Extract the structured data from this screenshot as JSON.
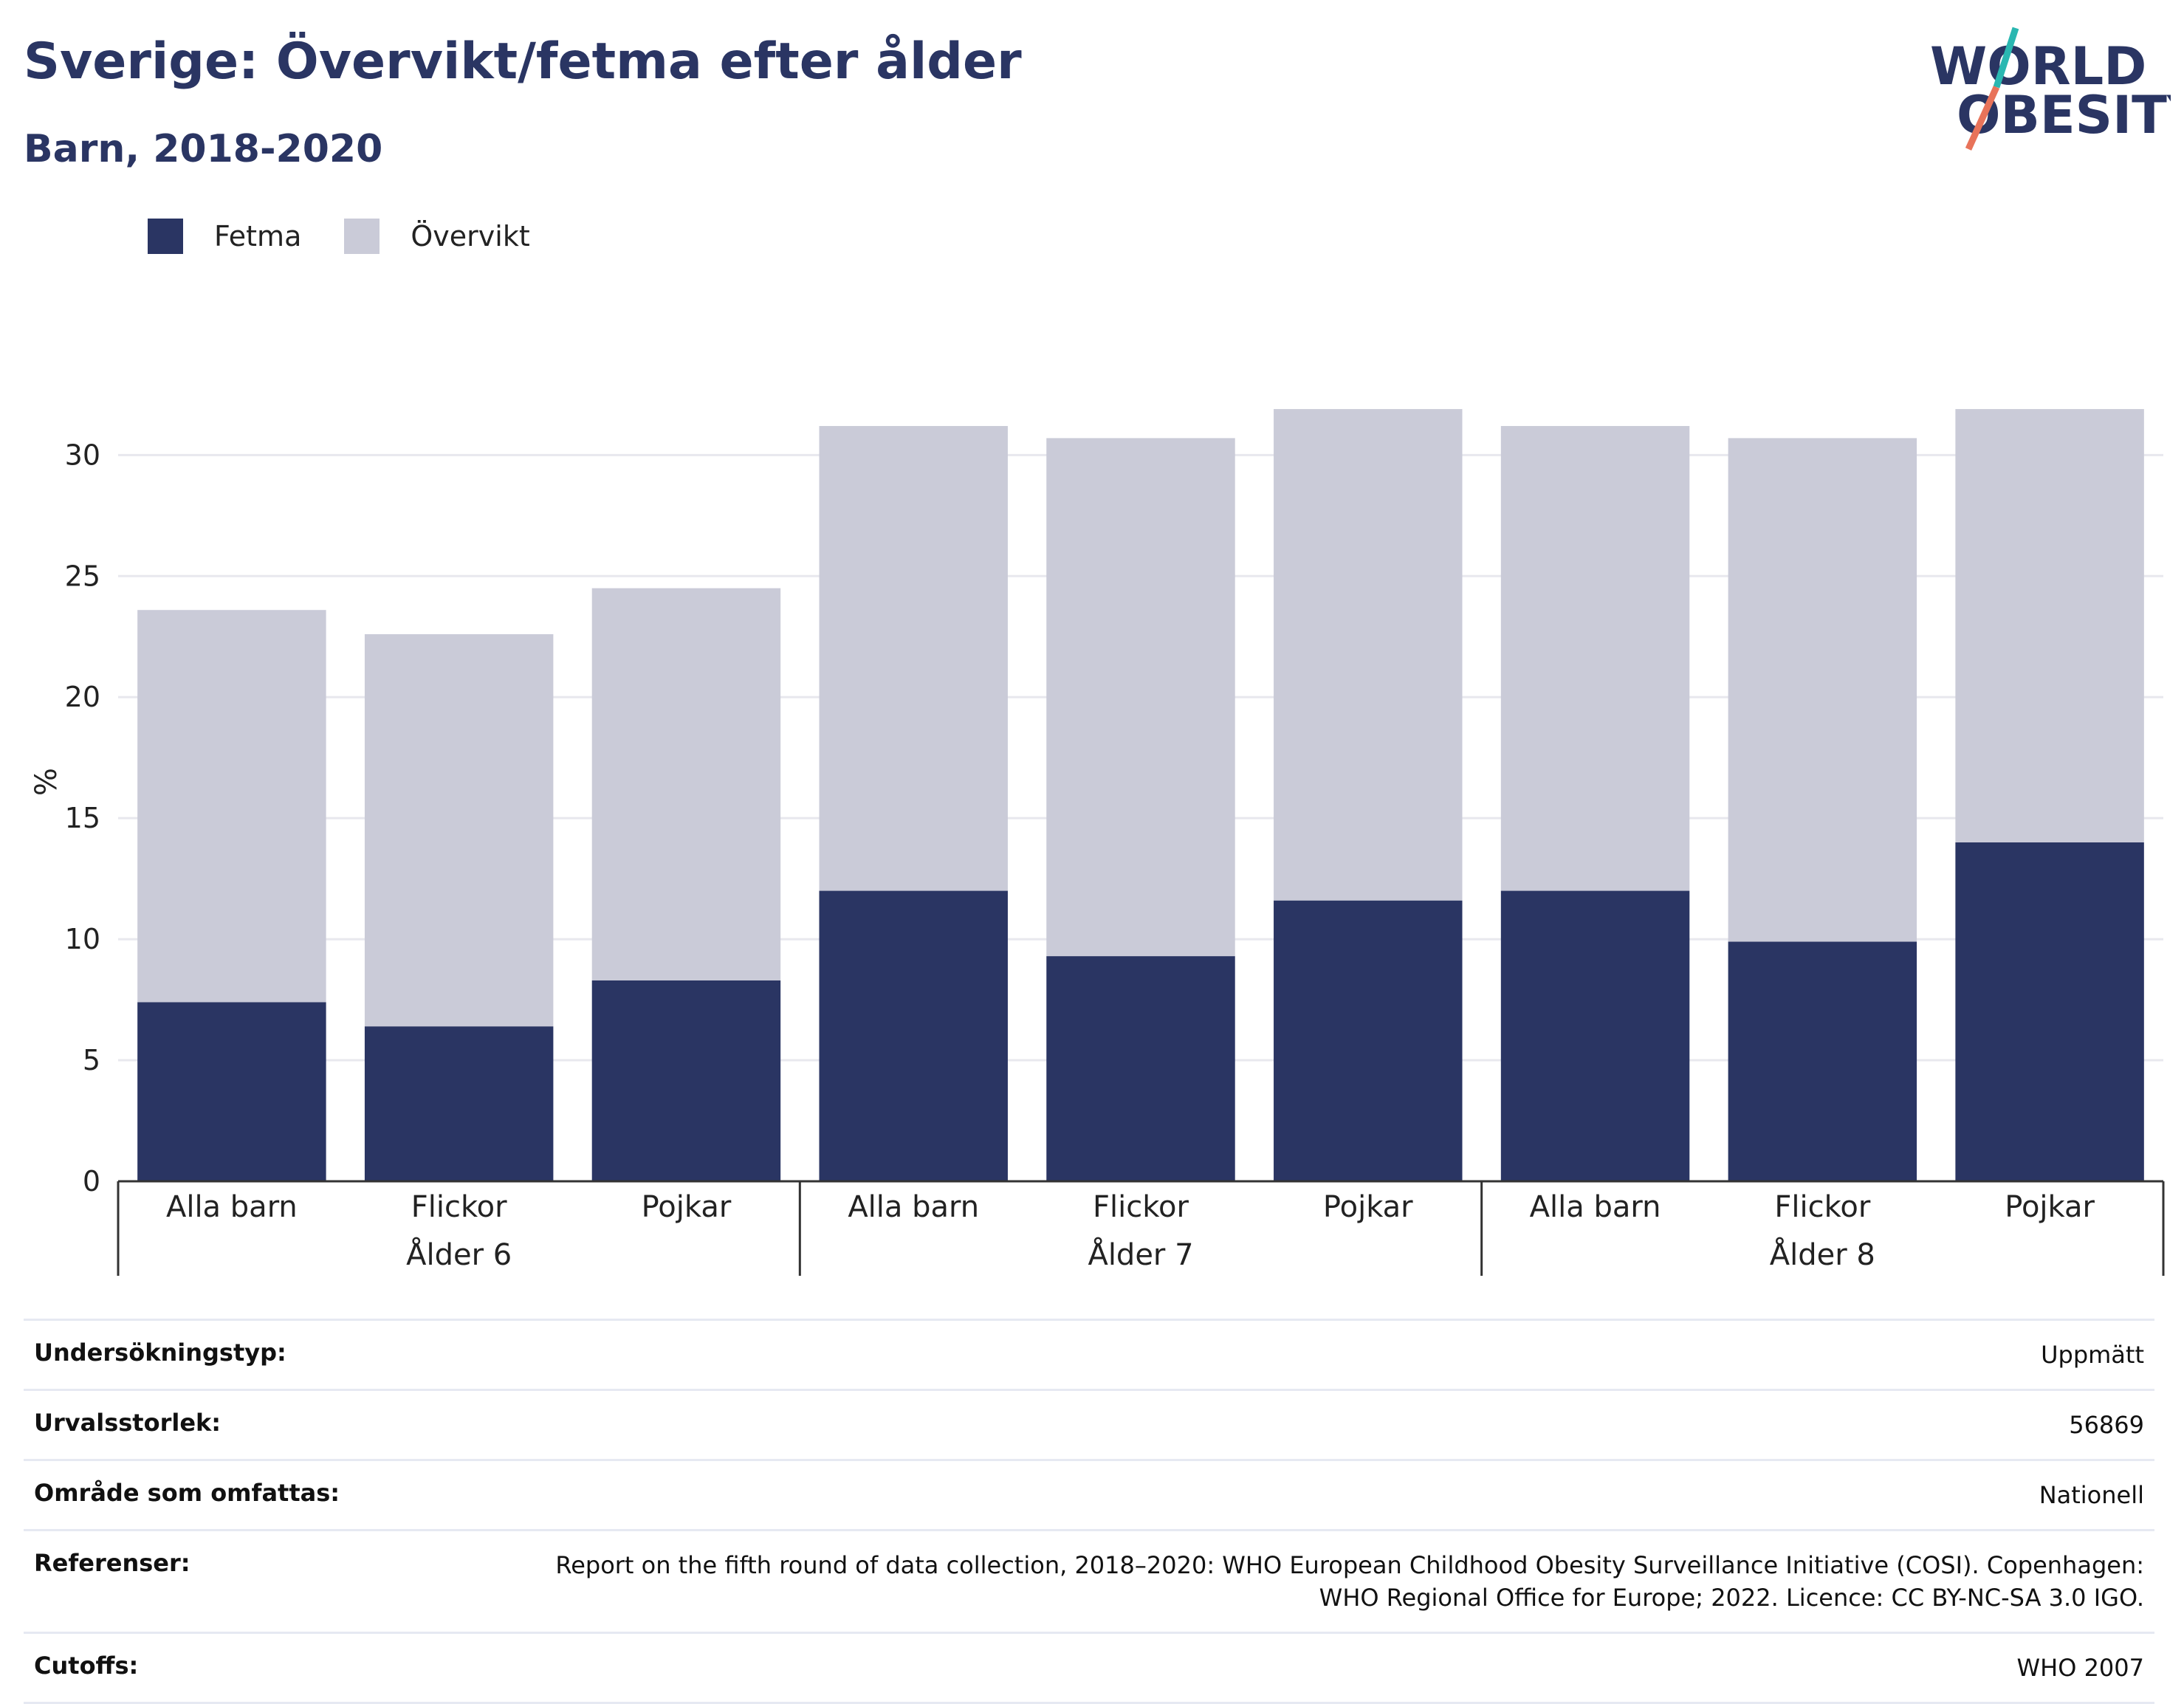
{
  "header": {
    "title": "Sverige: Övervikt/fetma efter ålder",
    "subtitle": "Barn, 2018-2020"
  },
  "logo": {
    "line1": "WORLD",
    "line2": "OBESITY",
    "slash_color_top": "#2ab7b1",
    "slash_color_bottom": "#e8735a"
  },
  "legend": [
    {
      "label": "Fetma",
      "color": "#2a3563"
    },
    {
      "label": "Övervikt",
      "color": "#cacbd8"
    }
  ],
  "chart_data": {
    "type": "bar",
    "stacked": true,
    "ylabel": "%",
    "ylim": [
      0,
      33
    ],
    "yticks": [
      0,
      5,
      10,
      15,
      20,
      25,
      30
    ],
    "grid": true,
    "legend_position": "top-left",
    "groups": [
      {
        "label": "Ålder 6",
        "categories": [
          "Alla barn",
          "Flickor",
          "Pojkar"
        ]
      },
      {
        "label": "Ålder 7",
        "categories": [
          "Alla barn",
          "Flickor",
          "Pojkar"
        ]
      },
      {
        "label": "Ålder 8",
        "categories": [
          "Alla barn",
          "Flickor",
          "Pojkar"
        ]
      }
    ],
    "series": [
      {
        "name": "Fetma",
        "color": "#2a3563",
        "values": [
          7.4,
          6.4,
          8.3,
          12.0,
          9.3,
          11.6,
          12.0,
          9.9,
          14.0
        ]
      },
      {
        "name": "Övervikt",
        "color": "#cacbd8",
        "values": [
          16.2,
          16.2,
          16.2,
          19.2,
          21.4,
          20.3,
          19.2,
          20.8,
          17.9
        ]
      }
    ]
  },
  "info": [
    {
      "label": "Undersökningstyp:",
      "value": "Uppmätt"
    },
    {
      "label": "Urvalsstorlek:",
      "value": "56869"
    },
    {
      "label": "Område som omfattas:",
      "value": "Nationell"
    },
    {
      "label": "Referenser:",
      "value": "Report on the fifth round of data collection, 2018–2020: WHO European Childhood Obesity Surveillance Initiative (COSI). Copenhagen: WHO Regional Office for Europe; 2022. Licence: CC BY-NC-SA 3.0 IGO."
    },
    {
      "label": "Cutoffs:",
      "value": "WHO 2007"
    }
  ]
}
